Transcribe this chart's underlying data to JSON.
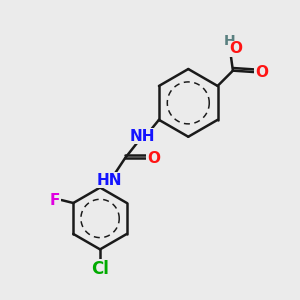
{
  "background_color": "#ebebeb",
  "bond_color": "#1a1a1a",
  "bond_width": 1.8,
  "atom_colors": {
    "C": "#1a1a1a",
    "H": "#5a8080",
    "N": "#1414ff",
    "O": "#ff1414",
    "F": "#e000e0",
    "Cl": "#00aa00"
  },
  "font_size": 10,
  "font_size_large": 11
}
